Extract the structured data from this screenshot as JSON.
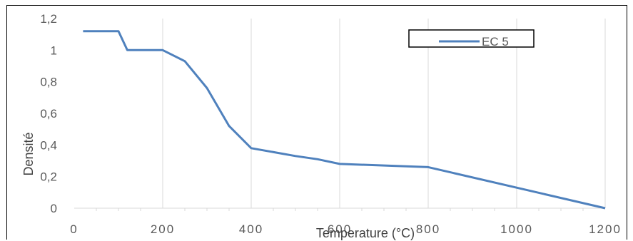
{
  "chart_data": {
    "type": "line",
    "xlabel": "Temperature (°C)",
    "ylabel": "Densité",
    "xlim": [
      0,
      1200
    ],
    "ylim": [
      0,
      1.2
    ],
    "x_ticks": [
      "0",
      "200",
      "400",
      "600",
      "800",
      "1000",
      "1200"
    ],
    "y_ticks": [
      "0",
      "0,2",
      "0,4",
      "0,6",
      "0,8",
      "1",
      "1,2"
    ],
    "grid": "vertical",
    "legend_position": "top-right",
    "series": [
      {
        "name": "EC 5",
        "color": "#4F81BD",
        "x": [
          20,
          100,
          120,
          200,
          250,
          300,
          350,
          400,
          500,
          550,
          600,
          800,
          1200
        ],
        "y": [
          1.12,
          1.12,
          1.0,
          1.0,
          0.93,
          0.76,
          0.52,
          0.38,
          0.33,
          0.31,
          0.28,
          0.26,
          0.0
        ]
      }
    ]
  }
}
